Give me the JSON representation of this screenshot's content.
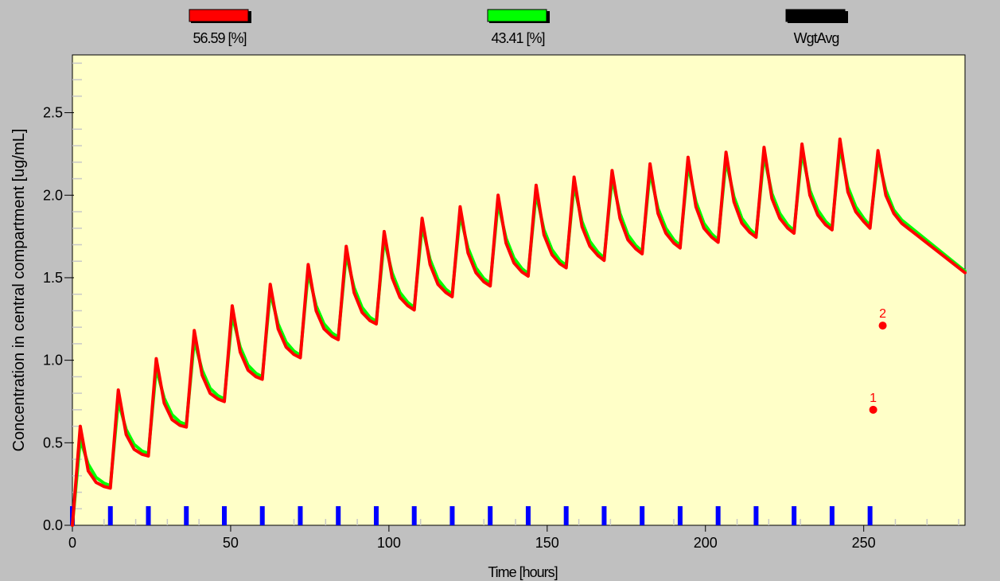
{
  "legend": [
    {
      "label": "56.59 [%]",
      "color": "#ff0000"
    },
    {
      "label": "43.41 [%]",
      "color": "#00ff00"
    },
    {
      "label": "WgtAvg",
      "color": "#000000"
    }
  ],
  "colors": {
    "background": "#c0c0c0",
    "plot_background": "#ffffc8",
    "dose_marker": "#0000ff",
    "observation": "#ff0000"
  },
  "chart_data": {
    "type": "line",
    "xlabel": "Time [hours]",
    "ylabel": "Concentration in central compartment  [ug/mL]",
    "xlim": [
      0,
      282
    ],
    "ylim": [
      0,
      2.85
    ],
    "xticks": [
      0,
      50,
      100,
      150,
      200,
      250
    ],
    "yticks": [
      0.0,
      0.5,
      1.0,
      1.5,
      2.0,
      2.5
    ],
    "ytick_labels": [
      "0.0",
      "0.5",
      "1.0",
      "1.5",
      "2.0",
      "2.5"
    ],
    "grid": false,
    "legend_position": "top",
    "series": [
      {
        "name": "56.59 [%]",
        "color": "#ff0000",
        "x": [
          0,
          2.5,
          5,
          7.5,
          10,
          12,
          14.5,
          17,
          19.5,
          22,
          24,
          26.5,
          29,
          31.5,
          34,
          36,
          38.5,
          41,
          43.5,
          46,
          48,
          50.5,
          53,
          55.5,
          58,
          60,
          62.5,
          65,
          67.5,
          70,
          72,
          74.5,
          77,
          79.5,
          82,
          84,
          86.5,
          89,
          91.5,
          94,
          96,
          98.5,
          101,
          103.5,
          106,
          108,
          110.5,
          113,
          115.5,
          118,
          120,
          122.5,
          125,
          127.5,
          130,
          132,
          134.5,
          137,
          139.5,
          142,
          144,
          146.5,
          149,
          151.5,
          154,
          156,
          158.5,
          161,
          163.5,
          166,
          168,
          170.5,
          173,
          175.5,
          178,
          180,
          182.5,
          185,
          187.5,
          190,
          192,
          194.5,
          197,
          199.5,
          202,
          204,
          206.5,
          209,
          211.5,
          214,
          216,
          218.5,
          221,
          223.5,
          226,
          228,
          230.5,
          233,
          235.5,
          238,
          240,
          242.5,
          245,
          247.5,
          250,
          252,
          254.5,
          257,
          259.5,
          262,
          282
        ],
        "y": [
          0.0,
          0.6,
          0.33,
          0.26,
          0.235,
          0.225,
          0.82,
          0.55,
          0.46,
          0.43,
          0.42,
          1.01,
          0.74,
          0.64,
          0.605,
          0.595,
          1.18,
          0.91,
          0.8,
          0.765,
          0.75,
          1.33,
          1.05,
          0.94,
          0.9,
          0.885,
          1.46,
          1.19,
          1.08,
          1.035,
          1.015,
          1.58,
          1.3,
          1.19,
          1.145,
          1.125,
          1.69,
          1.41,
          1.29,
          1.24,
          1.22,
          1.78,
          1.5,
          1.38,
          1.33,
          1.305,
          1.86,
          1.58,
          1.46,
          1.41,
          1.385,
          1.93,
          1.65,
          1.53,
          1.475,
          1.45,
          2.0,
          1.71,
          1.59,
          1.535,
          1.51,
          2.06,
          1.76,
          1.64,
          1.585,
          1.56,
          2.11,
          1.81,
          1.69,
          1.635,
          1.605,
          2.15,
          1.86,
          1.73,
          1.675,
          1.645,
          2.19,
          1.89,
          1.77,
          1.71,
          1.68,
          2.23,
          1.93,
          1.8,
          1.745,
          1.715,
          2.26,
          1.96,
          1.83,
          1.775,
          1.745,
          2.29,
          1.98,
          1.86,
          1.8,
          1.77,
          2.31,
          2.0,
          1.88,
          1.82,
          1.79,
          2.34,
          2.02,
          1.9,
          1.84,
          1.8,
          2.27,
          2.0,
          1.89,
          1.83,
          1.53
        ]
      },
      {
        "name": "43.41 [%]",
        "color": "#00ff00",
        "x": [
          0,
          2.5,
          5,
          7.5,
          10,
          12,
          14.5,
          17,
          19.5,
          22,
          24,
          26.5,
          29,
          31.5,
          34,
          36,
          38.5,
          41,
          43.5,
          46,
          48,
          50.5,
          53,
          55.5,
          58,
          60,
          62.5,
          65,
          67.5,
          70,
          72,
          74.5,
          77,
          79.5,
          82,
          84,
          86.5,
          89,
          91.5,
          94,
          96,
          98.5,
          101,
          103.5,
          106,
          108,
          110.5,
          113,
          115.5,
          118,
          120,
          122.5,
          125,
          127.5,
          130,
          132,
          134.5,
          137,
          139.5,
          142,
          144,
          146.5,
          149,
          151.5,
          154,
          156,
          158.5,
          161,
          163.5,
          166,
          168,
          170.5,
          173,
          175.5,
          178,
          180,
          182.5,
          185,
          187.5,
          190,
          192,
          194.5,
          197,
          199.5,
          202,
          204,
          206.5,
          209,
          211.5,
          214,
          216,
          218.5,
          221,
          223.5,
          226,
          228,
          230.5,
          233,
          235.5,
          238,
          240,
          242.5,
          245,
          247.5,
          250,
          252,
          254.5,
          257,
          259.5,
          262,
          282
        ],
        "y": [
          0.0,
          0.52,
          0.37,
          0.29,
          0.255,
          0.24,
          0.75,
          0.58,
          0.49,
          0.45,
          0.435,
          0.95,
          0.77,
          0.67,
          0.625,
          0.61,
          1.12,
          0.94,
          0.83,
          0.785,
          0.765,
          1.27,
          1.08,
          0.97,
          0.92,
          0.9,
          1.41,
          1.22,
          1.11,
          1.055,
          1.03,
          1.53,
          1.33,
          1.22,
          1.165,
          1.14,
          1.64,
          1.44,
          1.32,
          1.26,
          1.235,
          1.73,
          1.53,
          1.41,
          1.35,
          1.32,
          1.81,
          1.61,
          1.49,
          1.43,
          1.4,
          1.88,
          1.68,
          1.56,
          1.495,
          1.465,
          1.95,
          1.74,
          1.62,
          1.555,
          1.525,
          2.01,
          1.79,
          1.67,
          1.605,
          1.575,
          2.06,
          1.84,
          1.72,
          1.655,
          1.62,
          2.1,
          1.89,
          1.76,
          1.695,
          1.66,
          2.14,
          1.92,
          1.8,
          1.73,
          1.695,
          2.18,
          1.96,
          1.83,
          1.765,
          1.73,
          2.21,
          1.99,
          1.86,
          1.795,
          1.76,
          2.24,
          2.01,
          1.89,
          1.82,
          1.785,
          2.26,
          2.03,
          1.91,
          1.84,
          1.805,
          2.29,
          2.05,
          1.93,
          1.86,
          1.815,
          2.23,
          2.03,
          1.91,
          1.85,
          1.54
        ]
      }
    ],
    "dose_times": [
      0,
      12,
      24,
      36,
      48,
      60,
      72,
      84,
      96,
      108,
      120,
      132,
      144,
      156,
      168,
      180,
      192,
      204,
      216,
      228,
      240,
      252
    ],
    "observations": [
      {
        "label": "1",
        "x": 253,
        "y": 0.7
      },
      {
        "label": "2",
        "x": 256,
        "y": 1.21
      }
    ]
  }
}
